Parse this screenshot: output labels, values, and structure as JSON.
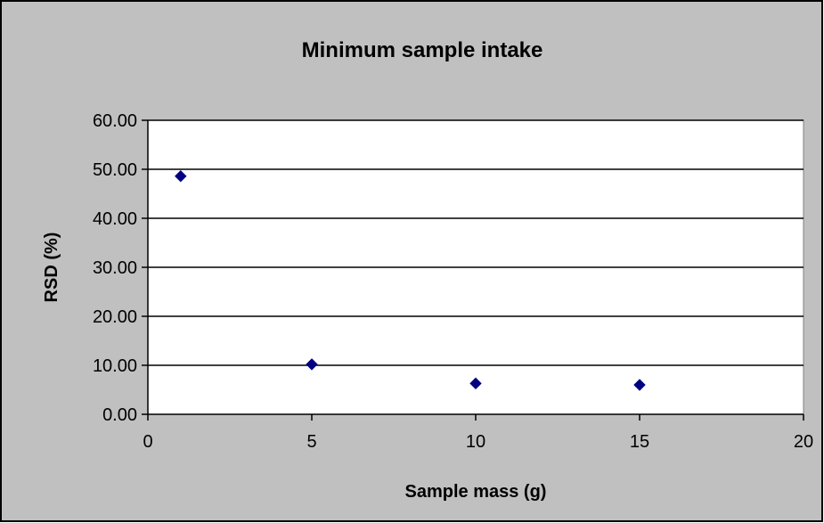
{
  "chart_data": {
    "type": "scatter",
    "title": "Minimum sample intake",
    "xlabel": "Sample mass (g)",
    "ylabel": "RSD (%)",
    "xlim": [
      0,
      20
    ],
    "ylim": [
      0,
      60
    ],
    "x_ticks": [
      "0",
      "5",
      "10",
      "15",
      "20"
    ],
    "y_ticks": [
      "0.00",
      "10.00",
      "20.00",
      "30.00",
      "40.00",
      "50.00",
      "60.00"
    ],
    "x_tick_values": [
      0,
      5,
      10,
      15,
      20
    ],
    "y_tick_values": [
      0,
      10,
      20,
      30,
      40,
      50,
      60
    ],
    "grid": "horizontal major gridlines",
    "legend": "none",
    "marker": "diamond",
    "series": [
      {
        "x": [
          1,
          5,
          10,
          15
        ],
        "y": [
          48.6,
          10.2,
          6.3,
          6.0
        ]
      }
    ],
    "colors": {
      "chart_area": "#c0c0c0",
      "plot_area": "#ffffff",
      "marker": "#000080",
      "gridline": "#000000",
      "border": "#000000"
    }
  }
}
